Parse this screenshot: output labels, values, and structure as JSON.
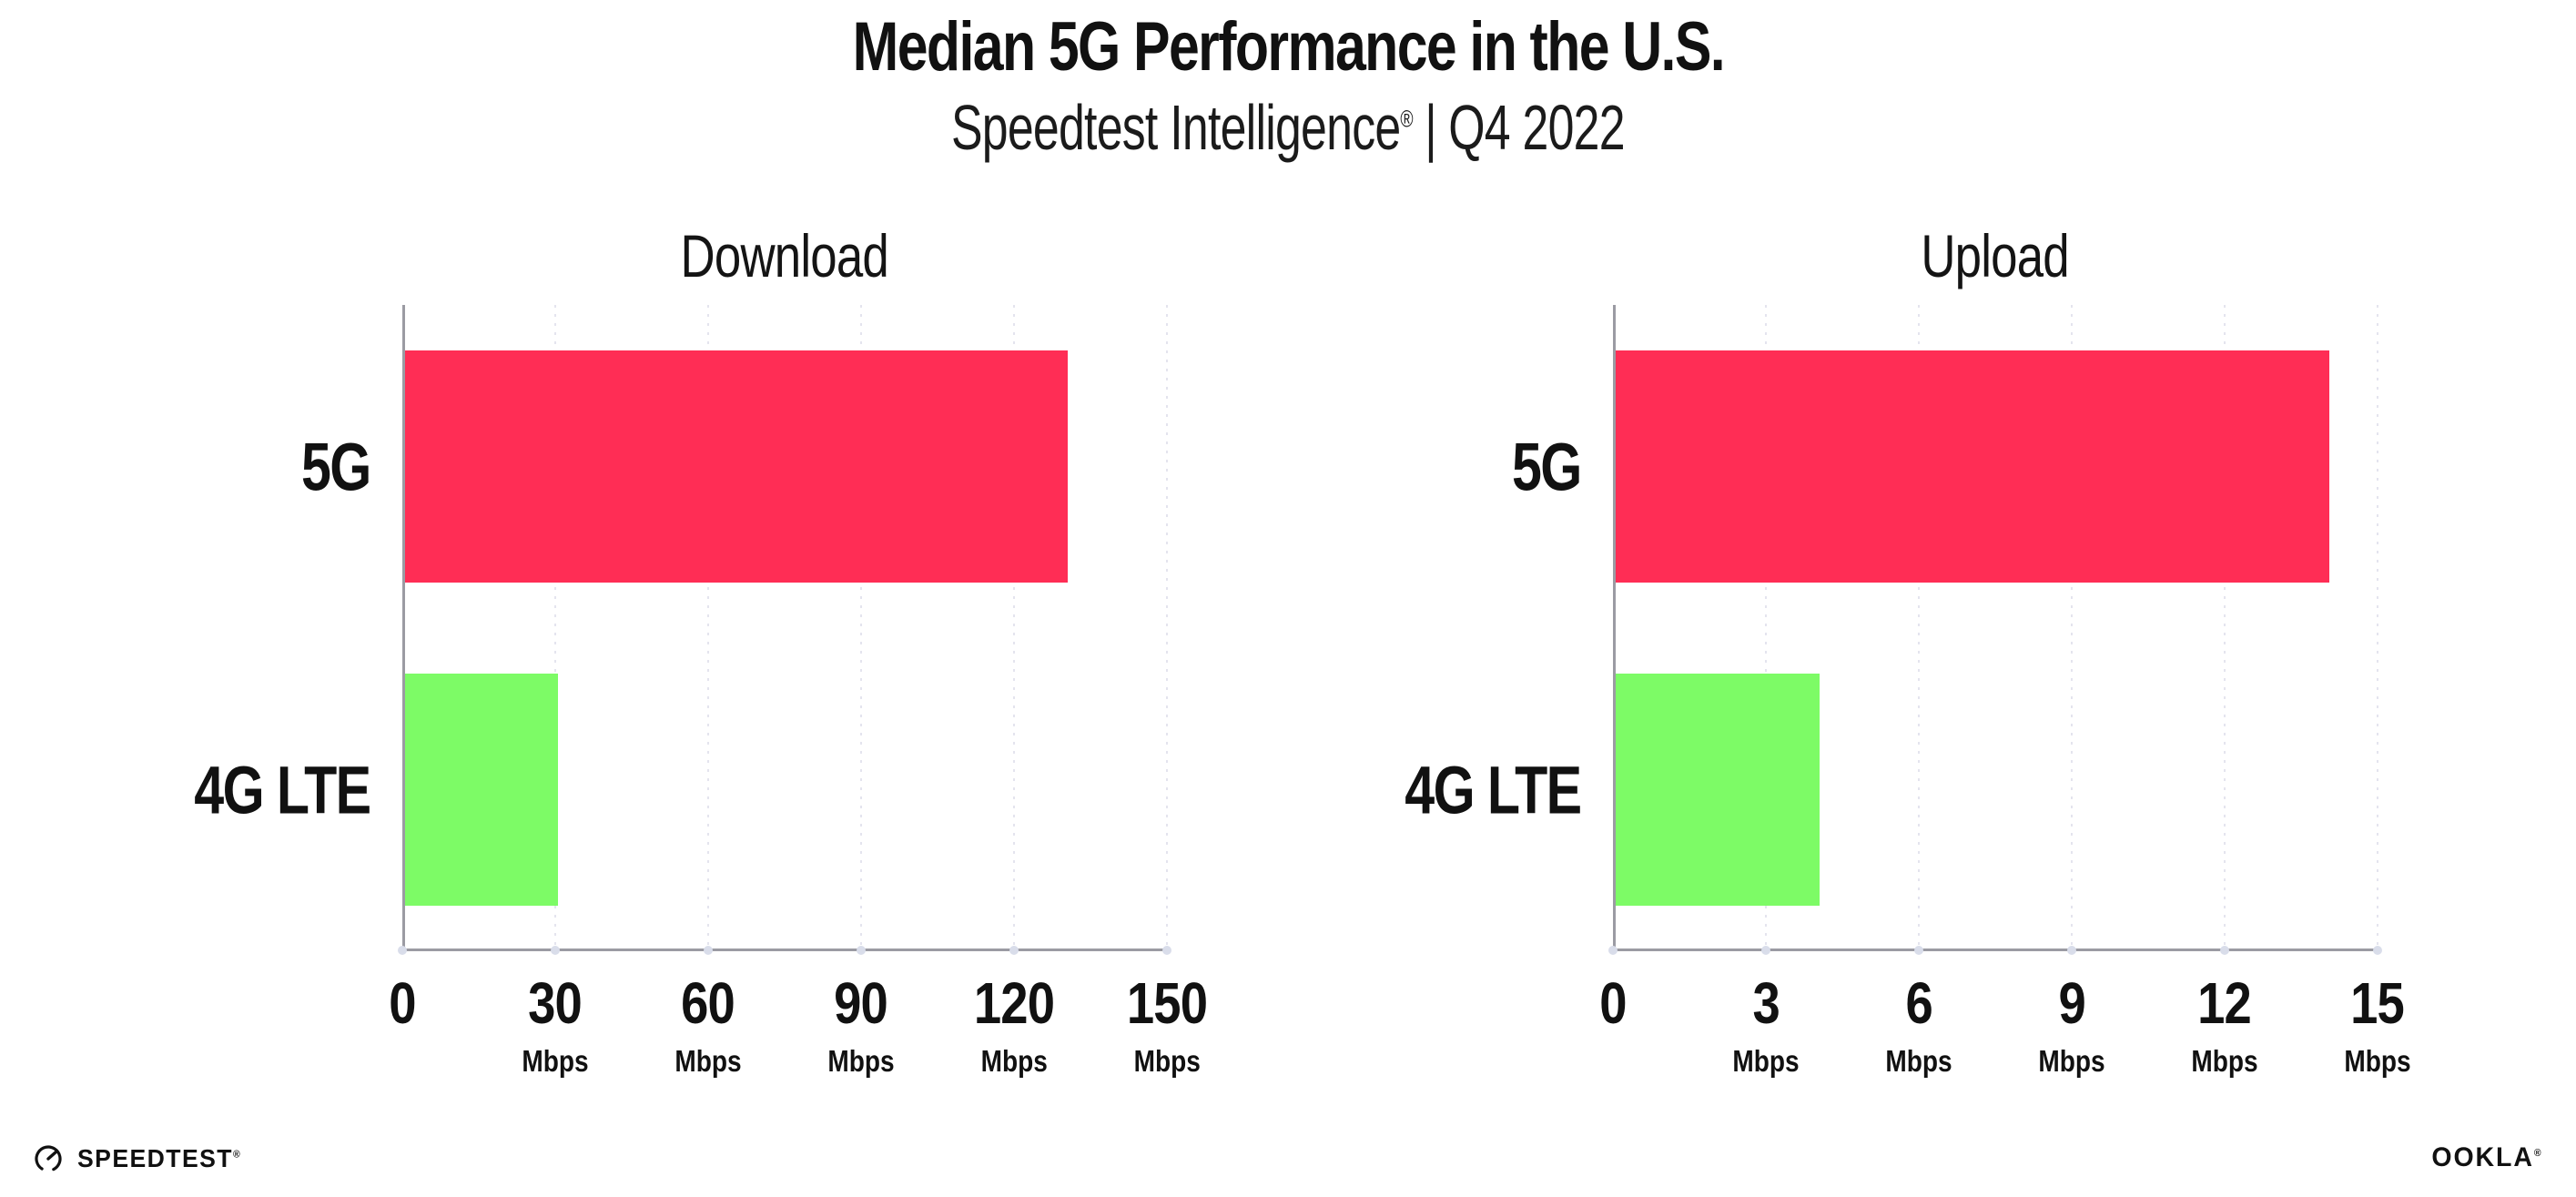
{
  "page": {
    "title": "Median 5G Performance in the U.S.",
    "subtitle_brand": "Speedtest Intelligence",
    "subtitle_registered": "®",
    "subtitle_separator": "|",
    "subtitle_period": "Q4 2022"
  },
  "charts": [
    {
      "title": "Download",
      "bars": [
        {
          "label": "5G"
        },
        {
          "label": "4G LTE"
        }
      ],
      "ticks": [
        {
          "v": "0",
          "u": ""
        },
        {
          "v": "30",
          "u": "Mbps"
        },
        {
          "v": "60",
          "u": "Mbps"
        },
        {
          "v": "90",
          "u": "Mbps"
        },
        {
          "v": "120",
          "u": "Mbps"
        },
        {
          "v": "150",
          "u": "Mbps"
        }
      ]
    },
    {
      "title": "Upload",
      "bars": [
        {
          "label": "5G"
        },
        {
          "label": "4G LTE"
        }
      ],
      "ticks": [
        {
          "v": "0",
          "u": ""
        },
        {
          "v": "3",
          "u": "Mbps"
        },
        {
          "v": "6",
          "u": "Mbps"
        },
        {
          "v": "9",
          "u": "Mbps"
        },
        {
          "v": "12",
          "u": "Mbps"
        },
        {
          "v": "15",
          "u": "Mbps"
        }
      ]
    }
  ],
  "footer": {
    "speedtest": "SPEEDTEST",
    "speedtest_registered": "®",
    "ookla": "OOKLA",
    "ookla_registered": "®"
  },
  "colors": {
    "bar_5g": "#FF2D55",
    "bar_4g_lte": "#7DFB66",
    "axis": "#9B9BA3",
    "gridline": "#E4E4EE",
    "tick_dot": "#D9DDEA",
    "text": "#111111",
    "background": "#FFFFFF"
  },
  "chart_data": [
    {
      "type": "bar",
      "orientation": "horizontal",
      "title": "Download",
      "categories": [
        "5G",
        "4G LTE"
      ],
      "values": [
        130,
        30
      ],
      "unit": "Mbps",
      "xlim": [
        0,
        150
      ],
      "xticks": [
        0,
        30,
        60,
        90,
        120,
        150
      ],
      "bar_colors": [
        "#FF2D55",
        "#7DFB66"
      ],
      "grid": "dotted vertical",
      "legend": "none"
    },
    {
      "type": "bar",
      "orientation": "horizontal",
      "title": "Upload",
      "categories": [
        "5G",
        "4G LTE"
      ],
      "values": [
        14,
        4
      ],
      "unit": "Mbps",
      "xlim": [
        0,
        15
      ],
      "xticks": [
        0,
        3,
        6,
        9,
        12,
        15
      ],
      "bar_colors": [
        "#FF2D55",
        "#7DFB66"
      ],
      "grid": "dotted vertical",
      "legend": "none"
    }
  ]
}
